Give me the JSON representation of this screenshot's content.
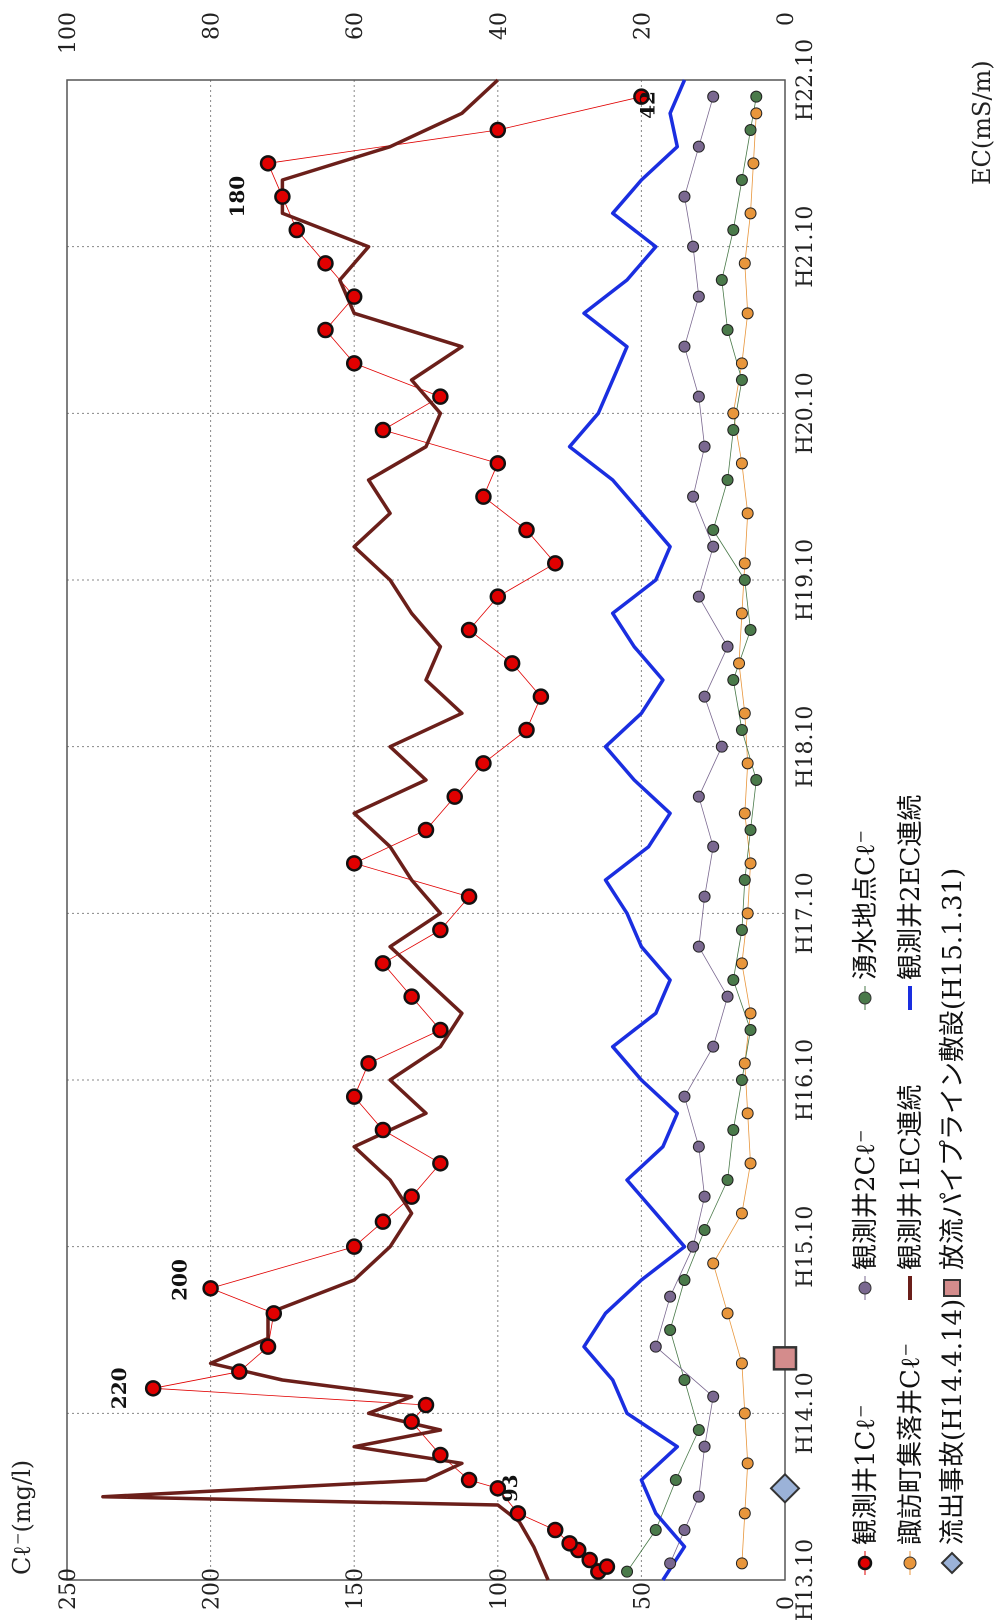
{
  "chart_data": {
    "type": "line",
    "orientation": "rotated-90-clockwise",
    "left_axis": {
      "label": "Cℓ⁻(mg/l)",
      "ticks": [
        "0",
        "50",
        "100",
        "150",
        "200",
        "250"
      ],
      "range": [
        0,
        250
      ]
    },
    "right_axis": {
      "label": "EC(mS/m)",
      "ticks": [
        "0",
        "20",
        "40",
        "60",
        "80",
        "100"
      ],
      "range": [
        0,
        100
      ]
    },
    "x_axis": {
      "ticks": [
        "H13.10",
        "H14.10",
        "H15.10",
        "H16.10",
        "H17.10",
        "H18.10",
        "H19.10",
        "H20.10",
        "H21.10",
        "H22.10"
      ],
      "range": [
        "H13.10",
        "H22.10"
      ]
    },
    "grid": true,
    "annotations": [
      "93",
      "220",
      "200",
      "180",
      "42"
    ],
    "series": [
      {
        "name": "観測井1Cℓ⁻",
        "axis": "left",
        "color": "#e00000",
        "x": [
          0.05,
          0.08,
          0.12,
          0.18,
          0.22,
          0.3,
          0.4,
          0.55,
          0.6,
          0.75,
          0.95,
          1.05,
          1.15,
          1.25,
          1.4,
          1.6,
          1.75,
          2.0,
          2.15,
          2.3,
          2.5,
          2.7,
          2.9,
          3.1,
          3.3,
          3.5,
          3.7,
          3.9,
          4.1,
          4.3,
          4.5,
          4.7,
          4.9,
          5.1,
          5.3,
          5.5,
          5.7,
          5.9,
          6.1,
          6.3,
          6.5,
          6.7,
          6.9,
          7.1,
          7.3,
          7.5,
          7.7,
          7.9,
          8.1,
          8.3,
          8.5,
          8.7,
          8.9
        ],
        "y": [
          65,
          62,
          68,
          72,
          75,
          80,
          93,
          100,
          110,
          120,
          130,
          125,
          220,
          190,
          180,
          178,
          200,
          150,
          140,
          130,
          120,
          140,
          150,
          145,
          120,
          130,
          140,
          120,
          110,
          150,
          125,
          115,
          105,
          90,
          85,
          95,
          110,
          100,
          80,
          90,
          105,
          100,
          140,
          120,
          150,
          160,
          150,
          160,
          170,
          175,
          180,
          100,
          50
        ]
      },
      {
        "name": "諏訪町集落井Cℓ⁻",
        "axis": "left",
        "color": "#e8963c",
        "x": [
          0.1,
          0.4,
          0.7,
          1.0,
          1.3,
          1.6,
          1.9,
          2.2,
          2.5,
          2.8,
          3.1,
          3.4,
          3.7,
          4.0,
          4.3,
          4.6,
          4.9,
          5.2,
          5.5,
          5.8,
          6.1,
          6.4,
          6.7,
          7.0,
          7.3,
          7.6,
          7.9,
          8.2,
          8.5,
          8.8
        ],
        "y": [
          15,
          14,
          13,
          14,
          15,
          20,
          25,
          15,
          12,
          13,
          14,
          12,
          15,
          13,
          12,
          14,
          13,
          14,
          16,
          15,
          14,
          13,
          15,
          18,
          15,
          13,
          14,
          12,
          11,
          10
        ]
      },
      {
        "name": "湧水地点Cℓ⁻",
        "axis": "left",
        "color": "#4a7a4a",
        "x": [
          0.05,
          0.3,
          0.6,
          0.9,
          1.2,
          1.5,
          1.8,
          2.1,
          2.4,
          2.7,
          3.0,
          3.3,
          3.6,
          3.9,
          4.2,
          4.5,
          4.8,
          5.1,
          5.4,
          5.7,
          6.0,
          6.3,
          6.6,
          6.9,
          7.2,
          7.5,
          7.8,
          8.1,
          8.4,
          8.7,
          8.9
        ],
        "y": [
          55,
          45,
          38,
          30,
          35,
          40,
          35,
          28,
          20,
          18,
          15,
          12,
          18,
          15,
          14,
          12,
          10,
          15,
          18,
          12,
          14,
          25,
          20,
          18,
          15,
          20,
          22,
          18,
          15,
          12,
          10
        ]
      },
      {
        "name": "観測井2Cℓ⁻",
        "axis": "left",
        "color": "#7a6890",
        "x": [
          0.1,
          0.3,
          0.5,
          0.8,
          1.1,
          1.4,
          1.7,
          2.0,
          2.3,
          2.6,
          2.9,
          3.2,
          3.5,
          3.8,
          4.1,
          4.4,
          4.7,
          5.0,
          5.3,
          5.6,
          5.9,
          6.2,
          6.5,
          6.8,
          7.1,
          7.4,
          7.7,
          8.0,
          8.3,
          8.6,
          8.9
        ],
        "y": [
          40,
          35,
          30,
          28,
          25,
          45,
          40,
          32,
          28,
          30,
          35,
          25,
          20,
          30,
          28,
          25,
          30,
          22,
          28,
          20,
          30,
          25,
          32,
          28,
          30,
          35,
          30,
          32,
          35,
          30,
          25
        ]
      },
      {
        "name": "観測井1EC連続",
        "axis": "right",
        "color": "#6b1f1a",
        "x": [
          0.0,
          0.2,
          0.35,
          0.45,
          0.5,
          0.6,
          0.7,
          0.8,
          0.9,
          1.0,
          1.1,
          1.2,
          1.3,
          1.45,
          1.6,
          1.8,
          2.0,
          2.2,
          2.4,
          2.6,
          2.8,
          3.0,
          3.2,
          3.4,
          3.6,
          3.8,
          4.0,
          4.2,
          4.4,
          4.6,
          4.8,
          5.0,
          5.2,
          5.4,
          5.6,
          5.8,
          6.0,
          6.2,
          6.4,
          6.6,
          6.8,
          7.0,
          7.2,
          7.4,
          7.6,
          7.8,
          8.0,
          8.2,
          8.4,
          8.6,
          8.8,
          9.0
        ],
        "y": [
          33,
          35,
          37,
          40,
          95,
          50,
          45,
          60,
          48,
          58,
          52,
          70,
          80,
          72,
          72,
          60,
          55,
          52,
          55,
          60,
          50,
          55,
          48,
          45,
          50,
          55,
          48,
          52,
          55,
          60,
          50,
          55,
          45,
          50,
          48,
          52,
          55,
          60,
          55,
          58,
          50,
          48,
          52,
          45,
          60,
          62,
          58,
          70,
          70,
          55,
          45,
          40
        ]
      },
      {
        "name": "観測井2EC連続",
        "axis": "right",
        "color": "#1a2ee0",
        "x": [
          0.0,
          0.2,
          0.4,
          0.6,
          0.8,
          1.0,
          1.2,
          1.4,
          1.6,
          1.8,
          2.0,
          2.2,
          2.4,
          2.6,
          2.8,
          3.0,
          3.2,
          3.4,
          3.6,
          3.8,
          4.0,
          4.2,
          4.4,
          4.6,
          4.8,
          5.0,
          5.2,
          5.4,
          5.6,
          5.8,
          6.0,
          6.2,
          6.4,
          6.6,
          6.8,
          7.0,
          7.2,
          7.4,
          7.6,
          7.8,
          8.0,
          8.2,
          8.4,
          8.6,
          8.8,
          9.0
        ],
        "y": [
          17,
          14,
          18,
          20,
          15,
          22,
          24,
          28,
          25,
          20,
          14,
          18,
          22,
          17,
          15,
          20,
          24,
          18,
          16,
          20,
          22,
          25,
          19,
          16,
          21,
          25,
          20,
          17,
          21,
          24,
          18,
          16,
          20,
          24,
          30,
          26,
          24,
          22,
          28,
          22,
          18,
          24,
          20,
          15,
          16,
          14
        ]
      }
    ]
  },
  "legend": {
    "items": [
      {
        "label": "観測井1Cℓ⁻",
        "marker": "red-dot-icon"
      },
      {
        "label": "諏訪町集落井Cℓ⁻",
        "marker": "orange-dot-icon"
      },
      {
        "label": "流出事故(H14.4.14)",
        "marker": "blue-diamond-icon"
      },
      {
        "label": "観測井2Cℓ⁻",
        "marker": "purple-dot-icon"
      },
      {
        "label": "観測井1EC連続",
        "marker": "brown-line-icon"
      },
      {
        "label": "放流パイプライン敷設(H15.1.31)",
        "marker": "pink-square-icon"
      },
      {
        "label": "湧水地点Cℓ⁻",
        "marker": "green-dot-icon"
      },
      {
        "label": "観測井2EC連続",
        "marker": "blue-line-icon"
      }
    ]
  },
  "events": [
    {
      "label": "流出事故(H14.4.14)",
      "x": 0.55,
      "color": "#9bb2d8"
    },
    {
      "label": "放流パイプライン敷設(H15.1.31)",
      "x": 1.33,
      "color": "#d48c8c"
    }
  ]
}
